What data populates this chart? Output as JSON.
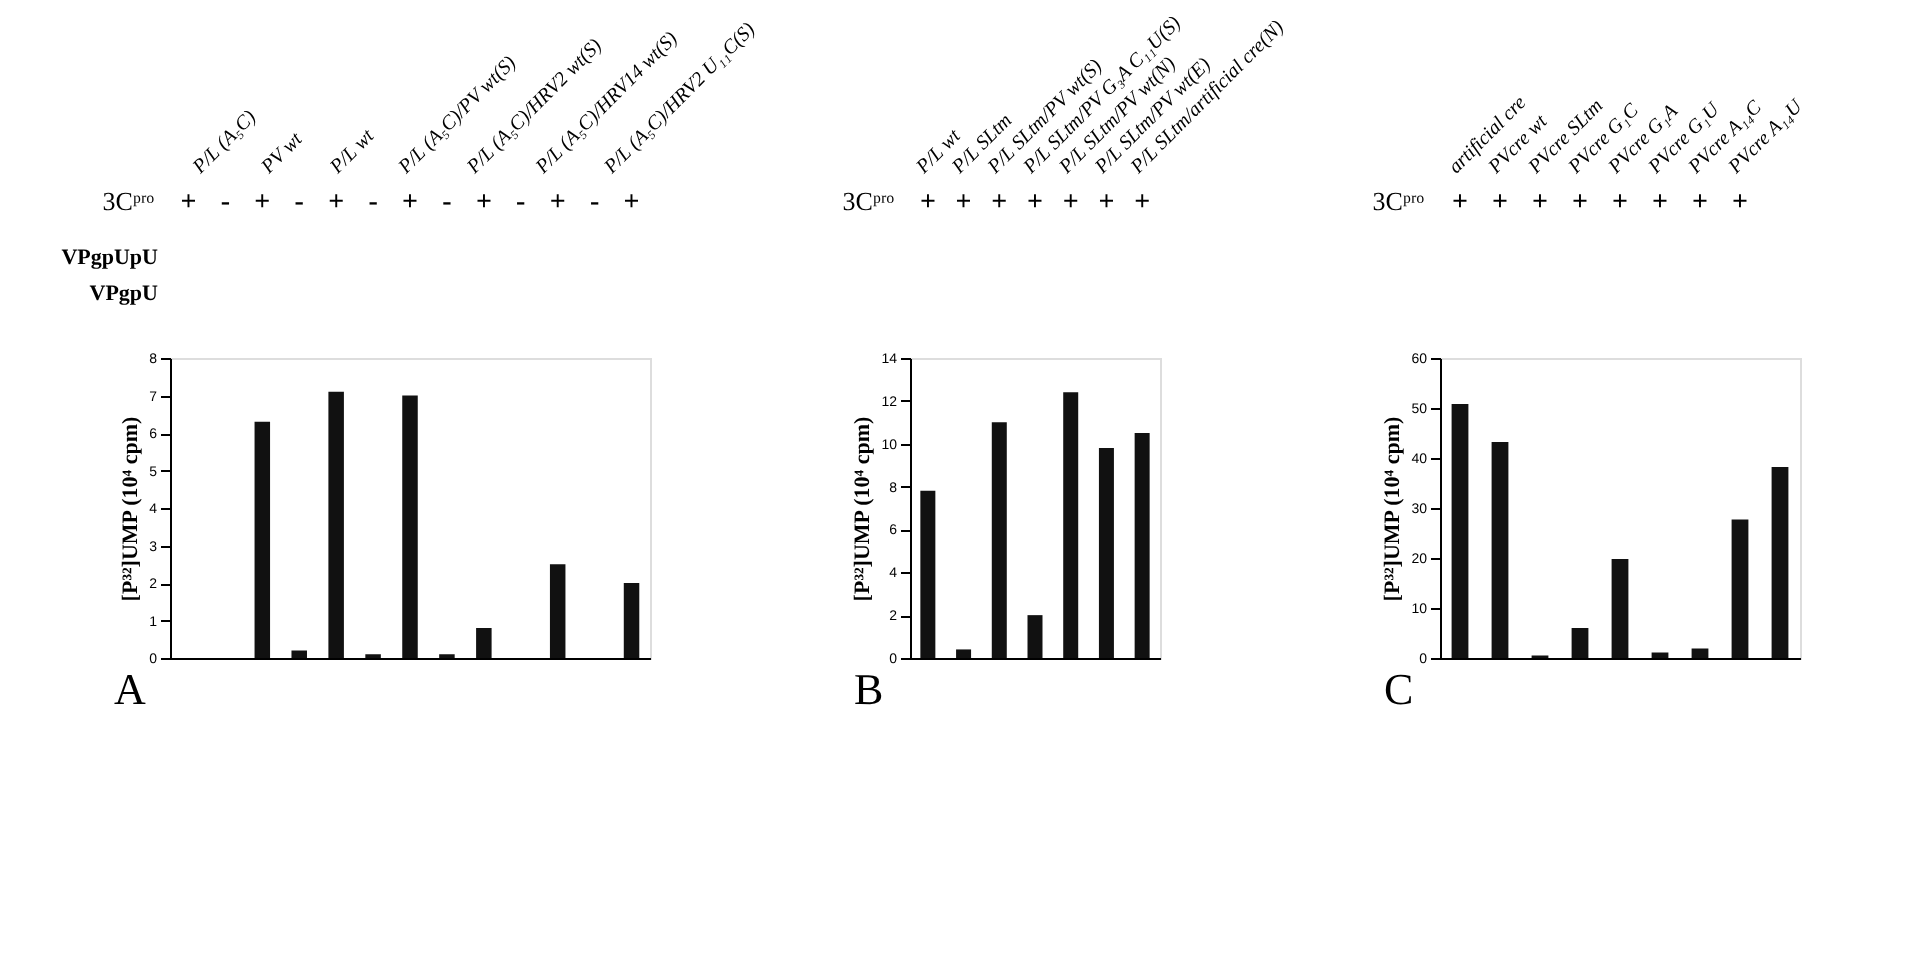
{
  "chart_data": [
    {
      "type": "bar",
      "ylabel": "[P³²]UMP (10⁴ cpm)",
      "categories": [
        "+",
        "-",
        "+",
        "-",
        "+",
        "-",
        "+",
        "-",
        "+",
        "-",
        "+",
        "-",
        "+"
      ],
      "values": [
        0,
        0,
        6.3,
        0.2,
        7.1,
        0.1,
        7.0,
        0.1,
        0.8,
        0,
        2.5,
        0,
        2.0
      ],
      "color": "#111111",
      "ylim": [
        0,
        8
      ],
      "yticks": [
        0,
        1,
        2,
        3,
        4,
        5,
        6,
        7,
        8
      ],
      "grid": false,
      "annotations": [
        "A",
        "3Cᵖʳᵒ",
        "VPgpUpU",
        "VPgpU",
        "P/L (A₅C)",
        "PV wt",
        "P/L wt",
        "P/L (A₅C)/PV wt(S)",
        "P/L (A₅C)/HRV2 wt(S)",
        "P/L (A₅C)/HRV14 wt(S)",
        "P/L (A₅C)/HRV2 U₁₁C(S)"
      ]
    },
    {
      "type": "bar",
      "ylabel": "[P³²]UMP (10⁴ cpm)",
      "categories": [
        "+",
        "+",
        "+",
        "+",
        "+",
        "+",
        "+"
      ],
      "values": [
        7.8,
        0.4,
        11.0,
        2.0,
        12.4,
        9.8,
        10.5
      ],
      "color": "#111111",
      "ylim": [
        0,
        14
      ],
      "yticks": [
        0,
        2,
        4,
        6,
        8,
        10,
        12,
        14
      ],
      "grid": false,
      "annotations": [
        "B",
        "3Cᵖʳᵒ",
        "P/L wt",
        "P/L SLtm",
        "P/L SLtm/PV wt(S)",
        "P/L SLtm/PV G₃A C₁₁U(S)",
        "P/L SLtm/PV wt(N)",
        "P/L SLtm/PV wt(E)",
        "P/L SLtm/artificial cre(N)"
      ]
    },
    {
      "type": "bar",
      "ylabel": "[P³²]UMP (10⁴ cpm)",
      "categories": [
        "+",
        "+",
        "+",
        "+",
        "+",
        "+",
        "+",
        "+",
        null
      ],
      "values": [
        50.8,
        43.2,
        0.5,
        6.0,
        19.8,
        1.1,
        1.9,
        27.7,
        38.2
      ],
      "color": "#111111",
      "ylim": [
        0,
        60
      ],
      "yticks": [
        0,
        10,
        20,
        30,
        40,
        50,
        60
      ],
      "grid": false,
      "annotations": [
        "C",
        "3Cᵖʳᵒ",
        "artificial cre",
        "PVcre wt",
        "PVcre SLtm",
        "PVcre G₁C",
        "PVcre G₁A",
        "PVcre G₁U",
        "PVcre A₁₄C",
        "PVcre A₁₄U"
      ]
    }
  ]
}
